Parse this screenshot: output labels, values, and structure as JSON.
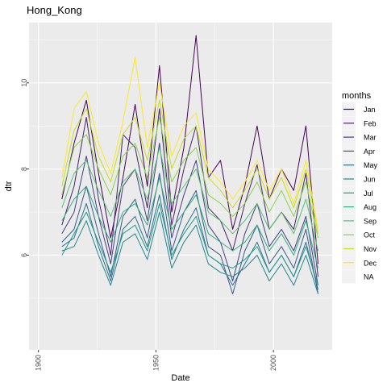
{
  "chart_data": {
    "type": "line",
    "title": "Hong_Kong",
    "xlabel": "Date",
    "ylabel": "dtr",
    "x_ticks": [
      "1900",
      "1950",
      "2000"
    ],
    "y_ticks": [
      "6",
      "8",
      "10"
    ],
    "xlim": [
      1896,
      2025
    ],
    "ylim": [
      3.8,
      11.4
    ],
    "x_start": 1910,
    "x_end": 2019,
    "grid": true,
    "legend_position": "right",
    "legend": {
      "title": "months",
      "entries": [
        "Jan",
        "Feb",
        "Mar",
        "Apr",
        "May",
        "Jun",
        "Jul",
        "Aug",
        "Sep",
        "Oct",
        "Nov",
        "Dec",
        "NA"
      ]
    },
    "series": [
      {
        "name": "Jan",
        "color": "#440154",
        "values": [
          7.3,
          8.6,
          9.6,
          7.9,
          6.4,
          7.8,
          9.5,
          7.6,
          10.4,
          7.0,
          8.5,
          11.1,
          7.8,
          8.2,
          6.6,
          7.6,
          9.0,
          7.3,
          8.0,
          7.5,
          9.0,
          5.8
        ]
      },
      {
        "name": "Feb",
        "color": "#482173",
        "values": [
          6.7,
          7.6,
          9.2,
          7.3,
          6.0,
          8.8,
          8.5,
          7.1,
          9.4,
          6.7,
          8.0,
          9.0,
          7.1,
          6.8,
          6.1,
          7.2,
          8.1,
          6.6,
          7.0,
          6.6,
          7.9,
          5.5
        ]
      },
      {
        "name": "Mar",
        "color": "#433E85",
        "values": [
          6.5,
          7.0,
          8.3,
          6.9,
          5.8,
          7.6,
          8.0,
          6.8,
          8.6,
          6.4,
          7.4,
          8.2,
          6.7,
          6.3,
          5.4,
          6.5,
          7.2,
          6.2,
          6.6,
          6.1,
          6.9,
          5.3
        ]
      },
      {
        "name": "Apr",
        "color": "#38598C",
        "values": [
          6.3,
          6.6,
          7.6,
          6.5,
          5.5,
          6.9,
          7.3,
          6.4,
          7.9,
          6.1,
          7.0,
          7.5,
          6.2,
          6.0,
          5.1,
          6.1,
          6.7,
          5.8,
          6.2,
          5.7,
          6.6,
          5.1
        ]
      },
      {
        "name": "May",
        "color": "#2D708E",
        "values": [
          6.2,
          6.4,
          7.2,
          6.2,
          5.4,
          6.6,
          6.9,
          6.2,
          7.4,
          5.9,
          6.6,
          7.1,
          6.0,
          5.8,
          5.3,
          5.8,
          6.3,
          5.6,
          6.0,
          5.5,
          6.3,
          5.2
        ]
      },
      {
        "name": "Jun",
        "color": "#25858E",
        "values": [
          6.1,
          6.2,
          6.8,
          6.0,
          5.3,
          6.3,
          6.5,
          5.9,
          7.0,
          5.7,
          6.3,
          6.7,
          5.8,
          5.6,
          5.5,
          5.7,
          6.0,
          5.4,
          5.8,
          5.3,
          6.0,
          5.1
        ]
      },
      {
        "name": "Jul",
        "color": "#1E9B8A",
        "values": [
          6.0,
          6.5,
          7.0,
          6.3,
          5.6,
          6.5,
          6.7,
          6.1,
          7.2,
          6.0,
          6.5,
          6.9,
          6.0,
          5.8,
          5.7,
          5.9,
          6.2,
          5.6,
          6.0,
          5.5,
          6.2,
          5.3
        ]
      },
      {
        "name": "Aug",
        "color": "#2BB07F",
        "values": [
          6.8,
          7.3,
          7.6,
          6.9,
          6.3,
          7.0,
          7.2,
          6.7,
          7.8,
          6.6,
          7.0,
          7.4,
          6.5,
          6.3,
          6.1,
          6.3,
          6.7,
          6.1,
          6.5,
          6.0,
          6.8,
          5.7
        ]
      },
      {
        "name": "Sep",
        "color": "#51C56A",
        "values": [
          7.1,
          7.9,
          8.2,
          7.5,
          6.9,
          7.7,
          8.0,
          7.3,
          8.5,
          7.2,
          7.6,
          8.0,
          7.0,
          6.8,
          6.5,
          6.8,
          7.2,
          6.6,
          7.0,
          6.5,
          7.3,
          6.1
        ]
      },
      {
        "name": "Oct",
        "color": "#85D54A",
        "values": [
          7.4,
          8.5,
          8.8,
          8.0,
          7.4,
          8.3,
          8.6,
          7.8,
          9.2,
          7.7,
          8.2,
          8.5,
          7.4,
          7.2,
          6.9,
          7.2,
          7.7,
          7.0,
          7.5,
          6.9,
          7.7,
          6.4
        ]
      },
      {
        "name": "Nov",
        "color": "#C2DF23",
        "values": [
          7.6,
          8.9,
          9.4,
          8.3,
          7.7,
          8.8,
          9.2,
          8.2,
          9.6,
          8.0,
          8.7,
          9.0,
          7.8,
          7.5,
          7.1,
          7.5,
          8.0,
          7.3,
          7.8,
          7.1,
          8.0,
          6.5
        ]
      },
      {
        "name": "Dec",
        "color": "#FDE725",
        "values": [
          7.8,
          9.4,
          9.8,
          8.6,
          7.9,
          9.1,
          10.6,
          8.5,
          10.0,
          8.3,
          9.0,
          9.3,
          8.0,
          7.7,
          7.3,
          7.7,
          8.2,
          7.5,
          8.0,
          7.2,
          8.2,
          6.6
        ]
      }
    ]
  }
}
